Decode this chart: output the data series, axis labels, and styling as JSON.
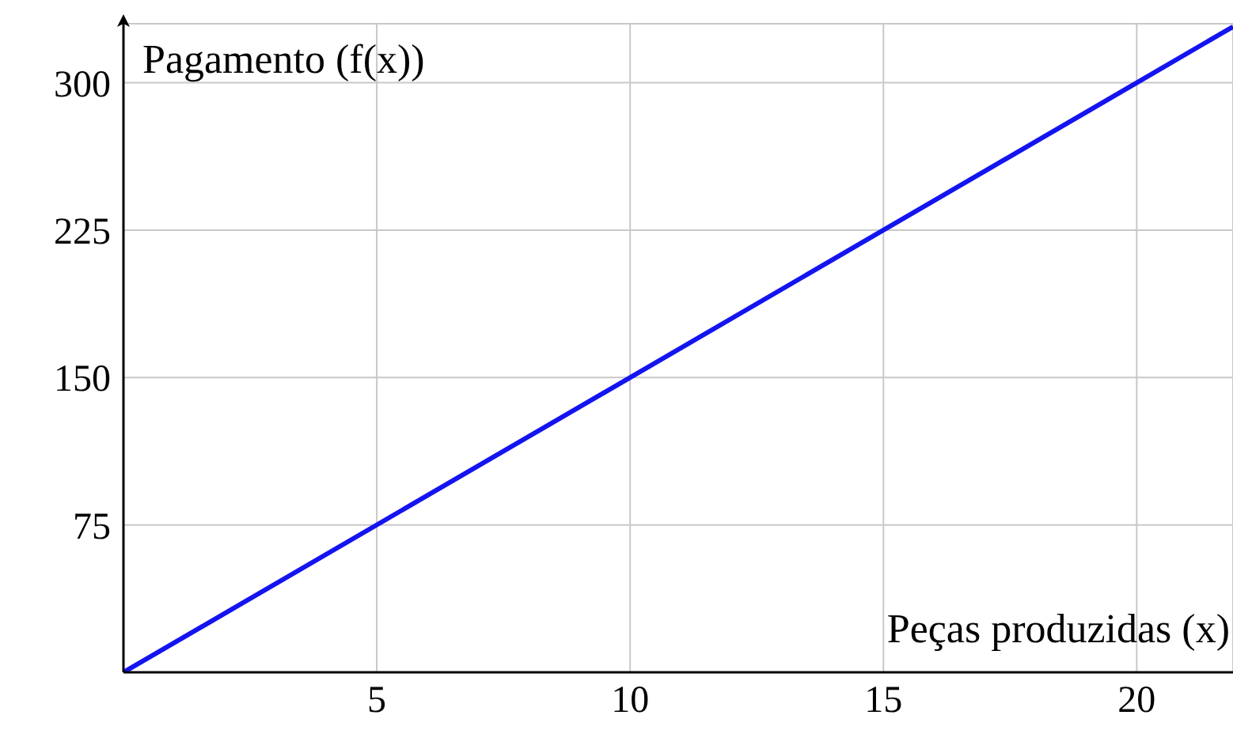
{
  "chart_data": {
    "type": "line",
    "xlabel": "Peças produzidas (x)",
    "ylabel": "Pagamento (f(x))",
    "x": [
      0,
      20,
      21.9
    ],
    "series": [
      {
        "color": "#1414f0",
        "values": [
          0,
          300,
          328.5
        ]
      }
    ],
    "xlim": [
      0,
      21.9
    ],
    "xticks": [
      5,
      10,
      15,
      20
    ],
    "ylim": [
      0,
      330
    ],
    "yticks": [
      75,
      150,
      225,
      300
    ],
    "grid": true,
    "marker": "none",
    "line_style": "solid"
  }
}
